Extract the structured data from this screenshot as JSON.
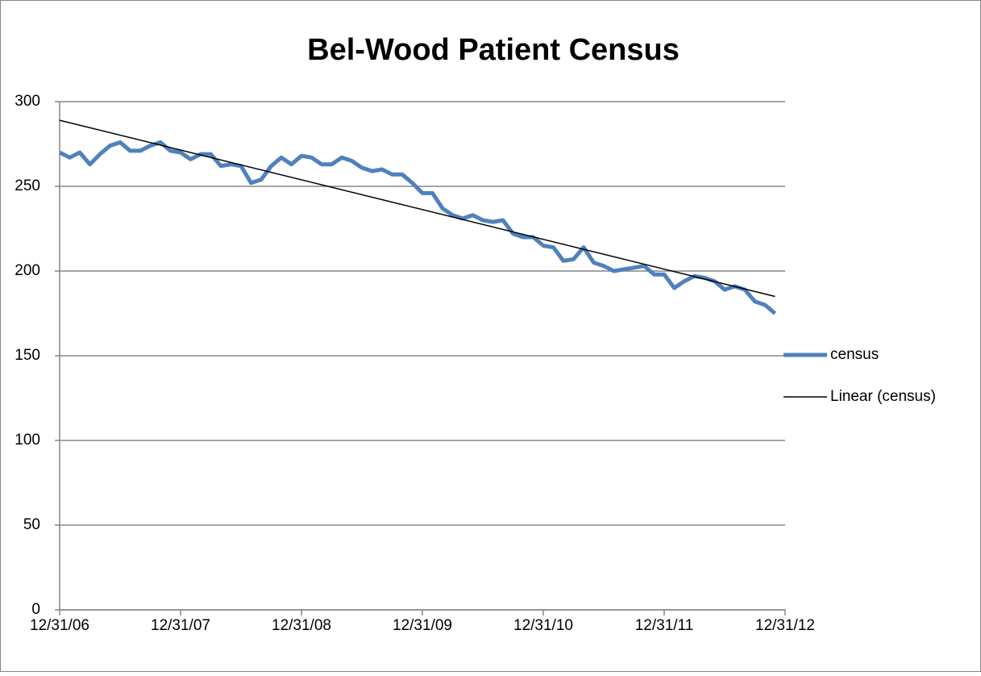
{
  "chart_data": {
    "type": "line",
    "title": "Bel-Wood Patient Census",
    "x": [
      0,
      1,
      2,
      3,
      4,
      5,
      6,
      7,
      8,
      9,
      10,
      11,
      12,
      13,
      14,
      15,
      16,
      17,
      18,
      19,
      20,
      21,
      22,
      23,
      24,
      25,
      26,
      27,
      28,
      29,
      30,
      31,
      32,
      33,
      34,
      35,
      36,
      37,
      38,
      39,
      40,
      41,
      42,
      43,
      44,
      45,
      46,
      47,
      48,
      49,
      50,
      51,
      52,
      53,
      54,
      55,
      56,
      57,
      58,
      59,
      60,
      61,
      62,
      63,
      64,
      65,
      66,
      67,
      68,
      69,
      70,
      71
    ],
    "xlim": [
      0,
      72
    ],
    "xticks": [
      {
        "value": 0,
        "label": "12/31/06"
      },
      {
        "value": 12,
        "label": "12/31/07"
      },
      {
        "value": 24,
        "label": "12/31/08"
      },
      {
        "value": 36,
        "label": "12/31/09"
      },
      {
        "value": 48,
        "label": "12/31/10"
      },
      {
        "value": 60,
        "label": "12/31/11"
      },
      {
        "value": 72,
        "label": "12/31/12"
      }
    ],
    "ylim": [
      0,
      300
    ],
    "yticks": [
      0,
      50,
      100,
      150,
      200,
      250,
      300
    ],
    "grid": true,
    "legend": "right",
    "series": [
      {
        "name": "census",
        "color": "#4f81bd",
        "values": [
          270,
          267,
          270,
          263,
          269,
          274,
          276,
          271,
          271,
          274,
          276,
          271,
          270,
          266,
          269,
          269,
          262,
          263,
          262,
          252,
          254,
          262,
          267,
          263,
          268,
          267,
          263,
          263,
          267,
          265,
          261,
          259,
          260,
          257,
          257,
          252,
          246,
          246,
          237,
          233,
          231,
          233,
          230,
          229,
          230,
          222,
          220,
          220,
          215,
          214,
          206,
          207,
          214,
          205,
          203,
          200,
          201,
          202,
          203,
          198,
          198,
          190,
          194,
          197,
          196,
          194,
          189,
          191,
          189,
          182,
          180,
          175
        ]
      },
      {
        "name": "Linear (census)",
        "color": "#000000",
        "x": [
          0,
          71
        ],
        "values": [
          289,
          185
        ]
      }
    ]
  }
}
